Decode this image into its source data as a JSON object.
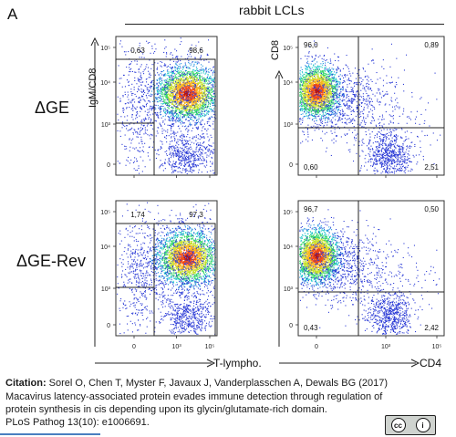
{
  "panel_letter": "A",
  "group_title": "rabbit LCLs",
  "row_labels": [
    "ΔGE",
    "ΔGE-Rev"
  ],
  "y_axis_labels": {
    "left": "IgM/CD8",
    "right": "CD8"
  },
  "x_axis_labels": {
    "left": "T-lympho.",
    "right": "CD4"
  },
  "tick_labels": {
    "y": [
      "10⁵",
      "10⁴",
      "10³",
      "0"
    ],
    "x": [
      "0",
      "10³",
      "10⁵"
    ]
  },
  "plots": [
    {
      "row": 1,
      "col": 1,
      "quadrant_values": [
        "0,63",
        "98,6"
      ]
    },
    {
      "row": 1,
      "col": 2,
      "quadrant_values": [
        "96,0",
        "0,89",
        "0,60",
        "2,51"
      ]
    },
    {
      "row": 2,
      "col": 1,
      "quadrant_values": [
        "1,74",
        "97,3"
      ]
    },
    {
      "row": 2,
      "col": 2,
      "quadrant_values": [
        "96,7",
        "0,50",
        "0,43",
        "2,42"
      ]
    }
  ],
  "citation": {
    "prefix": "Citation:",
    "text": "Sorel O, Chen T, Myster F, Javaux J, Vanderplasschen A, Dewals BG (2017) Macavirus latency-associated protein evades immune detection through regulation of protein synthesis in cis depending upon its glycin/glutamate-rich domain.",
    "journal": "PLoS Pathog 13(10): e1006691."
  },
  "license_badge": {
    "left": "cc",
    "right": "i",
    "caption": "BY"
  }
}
